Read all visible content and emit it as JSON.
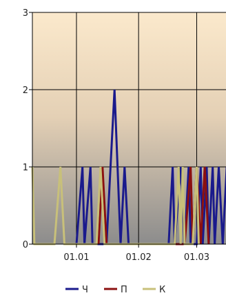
{
  "chart_data": {
    "type": "line",
    "title": "",
    "xlabel": "",
    "ylabel": "",
    "ylim": [
      0,
      3
    ],
    "yticks": [
      0,
      1,
      2,
      3
    ],
    "y_tick_labels": [
      "0",
      "1",
      "2",
      "3"
    ],
    "xlim": [
      "2023-12-10",
      "2024-03-17"
    ],
    "x_ticks": [
      {
        "date": "2024-01-01",
        "label": "01.01"
      },
      {
        "date": "2024-02-01",
        "label": "01.02"
      },
      {
        "date": "2024-03-01",
        "label": "01.03"
      }
    ],
    "grid": true,
    "legend_position": "bottom",
    "series": [
      {
        "name": "Ч",
        "color": "#1a1a8c",
        "points": [
          [
            "2024-01-01",
            0
          ],
          [
            "2024-01-04",
            1
          ],
          [
            "2024-01-05",
            0
          ],
          [
            "2024-01-08",
            1
          ],
          [
            "2024-01-09",
            0
          ],
          [
            "2024-01-16",
            0
          ],
          [
            "2024-01-20",
            2
          ],
          [
            "2024-01-23",
            0
          ],
          [
            "2024-01-25",
            1
          ],
          [
            "2024-01-27",
            0
          ],
          [
            "2024-02-16",
            0
          ],
          [
            "2024-02-18",
            1
          ],
          [
            "2024-02-19",
            0
          ],
          [
            "2024-02-22",
            1
          ],
          [
            "2024-02-24",
            0
          ],
          [
            "2024-02-26",
            1
          ],
          [
            "2024-02-27",
            0
          ],
          [
            "2024-03-01",
            0
          ],
          [
            "2024-03-03",
            1
          ],
          [
            "2024-03-04",
            0
          ],
          [
            "2024-03-06",
            1
          ],
          [
            "2024-03-07",
            0
          ],
          [
            "2024-03-09",
            1
          ],
          [
            "2024-03-10",
            0
          ],
          [
            "2024-03-12",
            1
          ],
          [
            "2024-03-14",
            0
          ],
          [
            "2024-03-16",
            1
          ],
          [
            "2024-03-17",
            0
          ]
        ]
      },
      {
        "name": "П",
        "color": "#8b1010",
        "points": [
          [
            "2024-01-12",
            0
          ],
          [
            "2024-01-14",
            1
          ],
          [
            "2024-01-16",
            0
          ],
          [
            "2024-02-24",
            0
          ],
          [
            "2024-02-27",
            1
          ],
          [
            "2024-02-28",
            0
          ],
          [
            "2024-03-01",
            1
          ],
          [
            "2024-03-03",
            0
          ],
          [
            "2024-03-05",
            1
          ],
          [
            "2024-03-07",
            0
          ]
        ]
      },
      {
        "name": "К",
        "color": "#c8c07a",
        "points": [
          [
            "2023-12-10",
            1
          ],
          [
            "2023-12-11",
            0
          ],
          [
            "2023-12-21",
            0
          ],
          [
            "2023-12-24",
            1
          ],
          [
            "2023-12-26",
            0
          ],
          [
            "2024-01-11",
            0
          ],
          [
            "2024-01-13",
            1
          ],
          [
            "2024-01-15",
            0
          ],
          [
            "2024-02-19",
            0
          ],
          [
            "2024-02-21",
            1
          ],
          [
            "2024-02-22",
            0
          ],
          [
            "2024-02-23",
            1
          ],
          [
            "2024-02-24",
            0
          ],
          [
            "2024-02-28",
            0
          ],
          [
            "2024-03-01",
            1
          ],
          [
            "2024-03-02",
            0
          ]
        ]
      }
    ]
  }
}
